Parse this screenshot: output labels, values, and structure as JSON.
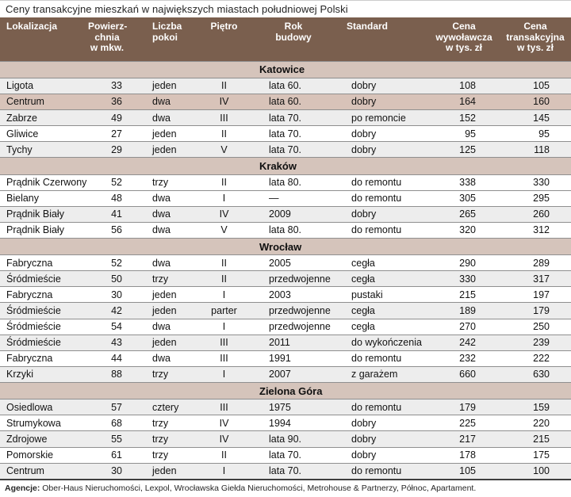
{
  "title": "Ceny transakcyjne mieszkań w największych miastach południowej Polski",
  "table": {
    "columns": [
      {
        "label": "Lokalizacja"
      },
      {
        "label": "Powierz-\nchnia\nw mkw."
      },
      {
        "label": "Liczba\npokoi"
      },
      {
        "label": "Piętro"
      },
      {
        "label": "Rok\nbudowy"
      },
      {
        "label": "Standard"
      },
      {
        "label": "Cena\nwywoławcza\nw tys. zł"
      },
      {
        "label": "Cena\ntransakcyjna\nw tys. zł"
      }
    ],
    "sections": [
      {
        "city": "Katowice",
        "rows": [
          {
            "shade": "gray",
            "cells": [
              "Ligota",
              "33",
              "jeden",
              "II",
              "lata 60.",
              "dobry",
              "108",
              "105"
            ]
          },
          {
            "shade": "pink",
            "cells": [
              "Centrum",
              "36",
              "dwa",
              "IV",
              "lata 60.",
              "dobry",
              "164",
              "160"
            ]
          },
          {
            "shade": "gray",
            "cells": [
              "Zabrze",
              "49",
              "dwa",
              "III",
              "lata 70.",
              "po remoncie",
              "152",
              "145"
            ]
          },
          {
            "shade": "white",
            "cells": [
              "Gliwice",
              "27",
              "jeden",
              "II",
              "lata 70.",
              "dobry",
              "95",
              "95"
            ]
          },
          {
            "shade": "gray",
            "cells": [
              "Tychy",
              "29",
              "jeden",
              "V",
              "lata 70.",
              "dobry",
              "125",
              "118"
            ]
          }
        ]
      },
      {
        "city": "Kraków",
        "rows": [
          {
            "shade": "white",
            "cells": [
              "Prądnik Czerwony",
              "52",
              "trzy",
              "II",
              "lata 80.",
              "do remontu",
              "338",
              "330"
            ]
          },
          {
            "shade": "white",
            "cells": [
              "Bielany",
              "48",
              "dwa",
              "I",
              "—",
              "do remontu",
              "305",
              "295"
            ]
          },
          {
            "shade": "gray",
            "cells": [
              "Prądnik Biały",
              "41",
              "dwa",
              "IV",
              "2009",
              "dobry",
              "265",
              "260"
            ]
          },
          {
            "shade": "white",
            "cells": [
              "Prądnik Biały",
              "56",
              "dwa",
              "V",
              "lata 80.",
              "do remontu",
              "320",
              "312"
            ]
          }
        ]
      },
      {
        "city": "Wrocław",
        "rows": [
          {
            "shade": "white",
            "cells": [
              "Fabryczna",
              "52",
              "dwa",
              "II",
              "2005",
              "cegła",
              "290",
              "289"
            ]
          },
          {
            "shade": "gray",
            "cells": [
              "Śródmieście",
              "50",
              "trzy",
              "II",
              "przedwojenne",
              "cegła",
              "330",
              "317"
            ]
          },
          {
            "shade": "white",
            "cells": [
              "Fabryczna",
              "30",
              "jeden",
              "I",
              "2003",
              "pustaki",
              "215",
              "197"
            ]
          },
          {
            "shade": "gray",
            "cells": [
              "Śródmieście",
              "42",
              "jeden",
              "parter",
              "przedwojenne",
              "cegła",
              "189",
              "179"
            ]
          },
          {
            "shade": "white",
            "cells": [
              "Śródmieście",
              "54",
              "dwa",
              "I",
              "przedwojenne",
              "cegła",
              "270",
              "250"
            ]
          },
          {
            "shade": "gray",
            "cells": [
              "Śródmieście",
              "43",
              "jeden",
              "III",
              "2011",
              "do wykończenia",
              "242",
              "239"
            ]
          },
          {
            "shade": "white",
            "cells": [
              "Fabryczna",
              "44",
              "dwa",
              "III",
              "1991",
              "do remontu",
              "232",
              "222"
            ]
          },
          {
            "shade": "gray",
            "cells": [
              "Krzyki",
              "88",
              "trzy",
              "I",
              "2007",
              "z garażem",
              "660",
              "630"
            ]
          }
        ]
      },
      {
        "city": "Zielona Góra",
        "rows": [
          {
            "shade": "gray",
            "cells": [
              "Osiedlowa",
              "57",
              "cztery",
              "III",
              "1975",
              "do remontu",
              "179",
              "159"
            ]
          },
          {
            "shade": "white",
            "cells": [
              "Strumykowa",
              "68",
              "trzy",
              "IV",
              "1994",
              "dobry",
              "225",
              "220"
            ]
          },
          {
            "shade": "gray",
            "cells": [
              "Zdrojowe",
              "55",
              "trzy",
              "IV",
              "lata 90.",
              "dobry",
              "217",
              "215"
            ]
          },
          {
            "shade": "white",
            "cells": [
              "Pomorskie",
              "61",
              "trzy",
              "II",
              "lata 70.",
              "dobry",
              "178",
              "175"
            ]
          },
          {
            "shade": "gray",
            "cells": [
              "Centrum",
              "30",
              "jeden",
              "I",
              "lata 70.",
              "do remontu",
              "105",
              "100"
            ]
          }
        ]
      }
    ]
  },
  "footer": {
    "label": "Agencje:",
    "text": " Ober-Haus Nieruchomości, Lexpol, Wrocławska Giełda Nieruchomości, Metrohouse & Partnerzy, Północ, Apartament."
  },
  "colors": {
    "header_bg": "#7a5f4e",
    "header_text": "#ffffff",
    "section_bg": "#d5c4bb",
    "highlight_row_bg": "#d8c3b9",
    "stripe_row_bg": "#ededed",
    "row_border": "#8f8f8f"
  }
}
